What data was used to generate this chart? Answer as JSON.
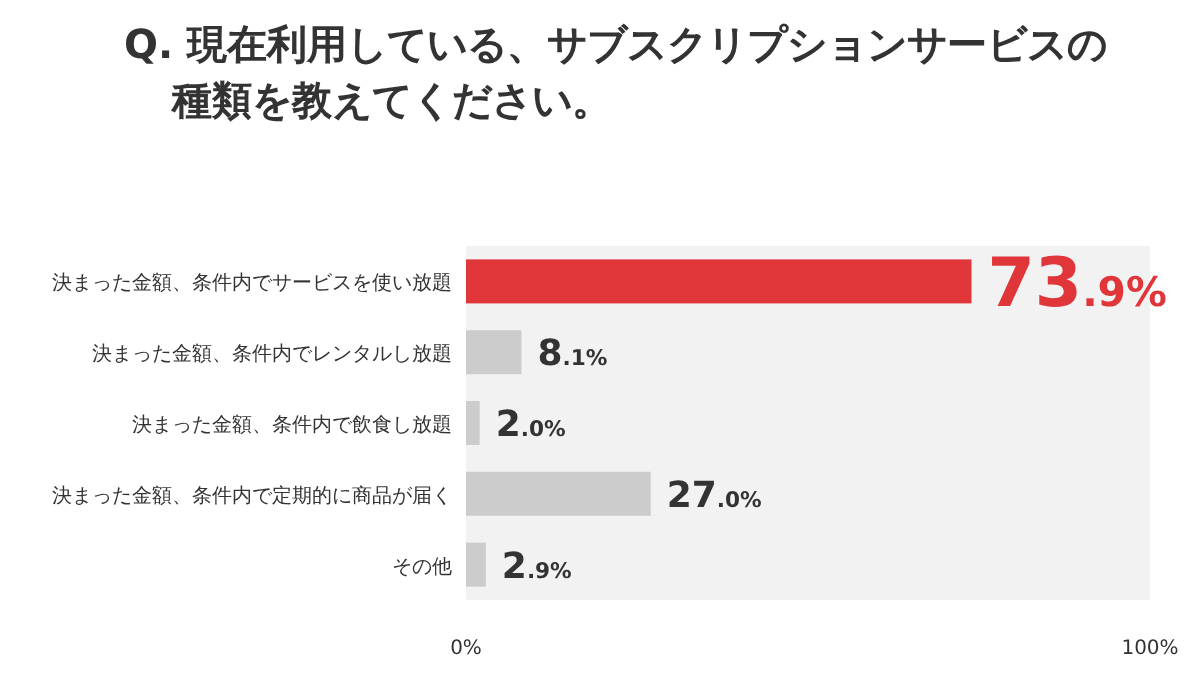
{
  "chart_data": {
    "type": "bar",
    "orientation": "horizontal",
    "title": "Q. 現在利用している、サブスクリプションサービスの種類を教えてください。",
    "categories": [
      "決まった金額、条件内でサービスを使い放題",
      "決まった金額、条件内でレンタルし放題",
      "決まった金額、条件内で飲食し放題",
      "決まった金額、条件内で定期的に商品が届く",
      "その他"
    ],
    "values": [
      73.9,
      8.1,
      2.0,
      27.0,
      2.9
    ],
    "colors": [
      "#e0363a",
      "#cccccc",
      "#cccccc",
      "#cccccc",
      "#cccccc"
    ],
    "value_labels": [
      "73.9%",
      "8.1%",
      "2.0%",
      "27.0%",
      "2.9%"
    ],
    "xlim": [
      0,
      100
    ],
    "xticks": [
      {
        "value": 0,
        "label": "0%"
      },
      {
        "value": 100,
        "label": "100%"
      }
    ],
    "grid": false
  }
}
